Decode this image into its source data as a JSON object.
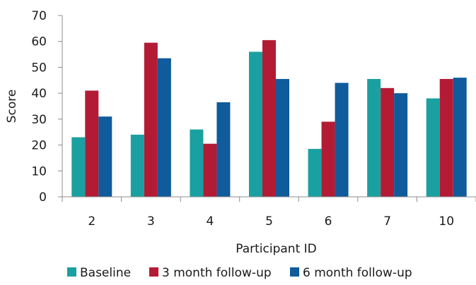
{
  "chart_data": {
    "type": "bar",
    "title": "",
    "xlabel": "Participant ID",
    "ylabel": "Score",
    "ylim": [
      0,
      70
    ],
    "yticks": [
      0,
      10,
      20,
      30,
      40,
      50,
      60,
      70
    ],
    "grid": false,
    "legend_position": "bottom",
    "categories": [
      "2",
      "3",
      "4",
      "5",
      "6",
      "7",
      "10"
    ],
    "series": [
      {
        "name": "Baseline",
        "color": "#1aa0a0",
        "values": [
          23,
          24,
          26,
          56,
          18.5,
          45.5,
          38
        ]
      },
      {
        "name": "3 month follow-up",
        "color": "#b31b34",
        "values": [
          41,
          59.5,
          20.5,
          60.5,
          29,
          42,
          45.5
        ]
      },
      {
        "name": "6 month follow-up",
        "color": "#0f5b9c",
        "values": [
          31,
          53.5,
          36.5,
          45.5,
          44,
          40,
          46
        ]
      }
    ]
  }
}
